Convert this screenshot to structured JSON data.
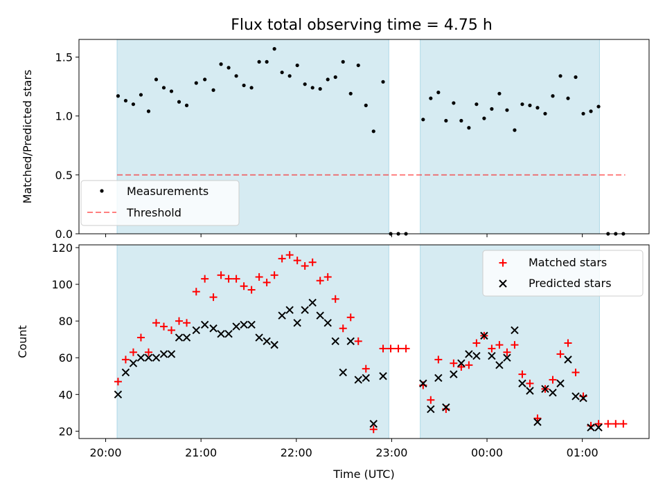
{
  "chart_data": {
    "type": "scatter",
    "title": "Flux total observing time = 4.75 h",
    "xlabel": "Time (UTC)",
    "x_tick_labels": [
      "20:00",
      "21:00",
      "22:00",
      "23:00",
      "00:00",
      "01:00"
    ],
    "x_tick_hours": [
      20,
      21,
      22,
      23,
      24,
      25
    ],
    "xlim_hours": [
      19.72,
      25.7
    ],
    "observing_windows_hours": [
      [
        20.12,
        22.97
      ],
      [
        23.3,
        25.18
      ]
    ],
    "window_color": "#add8e6",
    "top_panel": {
      "ylabel": "Matched/Predicted stars",
      "ylim": [
        0,
        1.65
      ],
      "y_ticks": [
        "0.0",
        "0.5",
        "1.0",
        "1.5"
      ],
      "y_tick_values": [
        0,
        0.5,
        1.0,
        1.5
      ],
      "legend": {
        "placement": "lower-left",
        "measurements_label": "Measurements",
        "threshold_label": "Threshold"
      },
      "threshold": {
        "value": 0.5,
        "x_range_hours": [
          20.12,
          25.45
        ],
        "color": "#ff0000"
      },
      "measurements_color": "#000000",
      "measurements": [
        [
          20.13,
          1.17
        ],
        [
          20.21,
          1.13
        ],
        [
          20.29,
          1.1
        ],
        [
          20.37,
          1.18
        ],
        [
          20.45,
          1.04
        ],
        [
          20.53,
          1.31
        ],
        [
          20.61,
          1.24
        ],
        [
          20.69,
          1.21
        ],
        [
          20.77,
          1.12
        ],
        [
          20.85,
          1.09
        ],
        [
          20.95,
          1.28
        ],
        [
          21.04,
          1.31
        ],
        [
          21.13,
          1.22
        ],
        [
          21.21,
          1.44
        ],
        [
          21.29,
          1.41
        ],
        [
          21.37,
          1.34
        ],
        [
          21.45,
          1.26
        ],
        [
          21.53,
          1.24
        ],
        [
          21.61,
          1.46
        ],
        [
          21.69,
          1.46
        ],
        [
          21.77,
          1.57
        ],
        [
          21.85,
          1.37
        ],
        [
          21.93,
          1.34
        ],
        [
          22.01,
          1.43
        ],
        [
          22.09,
          1.27
        ],
        [
          22.17,
          1.24
        ],
        [
          22.25,
          1.23
        ],
        [
          22.33,
          1.31
        ],
        [
          22.41,
          1.33
        ],
        [
          22.49,
          1.46
        ],
        [
          22.57,
          1.19
        ],
        [
          22.65,
          1.43
        ],
        [
          22.73,
          1.09
        ],
        [
          22.81,
          0.87
        ],
        [
          22.91,
          1.29
        ],
        [
          22.99,
          0.0
        ],
        [
          23.07,
          0.0
        ],
        [
          23.15,
          0.0
        ],
        [
          23.33,
          0.97
        ],
        [
          23.41,
          1.15
        ],
        [
          23.49,
          1.2
        ],
        [
          23.57,
          0.96
        ],
        [
          23.65,
          1.11
        ],
        [
          23.73,
          0.96
        ],
        [
          23.81,
          0.9
        ],
        [
          23.89,
          1.1
        ],
        [
          23.97,
          0.98
        ],
        [
          24.05,
          1.06
        ],
        [
          24.13,
          1.19
        ],
        [
          24.21,
          1.05
        ],
        [
          24.29,
          0.88
        ],
        [
          24.37,
          1.1
        ],
        [
          24.45,
          1.09
        ],
        [
          24.53,
          1.07
        ],
        [
          24.61,
          1.02
        ],
        [
          24.69,
          1.17
        ],
        [
          24.77,
          1.34
        ],
        [
          24.85,
          1.15
        ],
        [
          24.93,
          1.33
        ],
        [
          25.01,
          1.02
        ],
        [
          25.09,
          1.04
        ],
        [
          25.17,
          1.08
        ],
        [
          25.27,
          0.0
        ],
        [
          25.35,
          0.0
        ],
        [
          25.43,
          0.0
        ]
      ]
    },
    "bottom_panel": {
      "ylabel": "Count",
      "ylim": [
        16,
        121.5
      ],
      "y_ticks": [
        "20",
        "40",
        "60",
        "80",
        "100",
        "120"
      ],
      "y_tick_values": [
        20,
        40,
        60,
        80,
        100,
        120
      ],
      "legend": {
        "placement": "upper-right"
      },
      "series": [
        {
          "name": "Matched stars",
          "marker": "plus",
          "color": "#ff0000",
          "points": [
            [
              20.13,
              47
            ],
            [
              20.21,
              59
            ],
            [
              20.29,
              63
            ],
            [
              20.37,
              71
            ],
            [
              20.45,
              63
            ],
            [
              20.53,
              79
            ],
            [
              20.61,
              77
            ],
            [
              20.69,
              75
            ],
            [
              20.77,
              80
            ],
            [
              20.85,
              79
            ],
            [
              20.95,
              96
            ],
            [
              21.04,
              103
            ],
            [
              21.13,
              93
            ],
            [
              21.21,
              105
            ],
            [
              21.29,
              103
            ],
            [
              21.37,
              103
            ],
            [
              21.45,
              99
            ],
            [
              21.53,
              97
            ],
            [
              21.61,
              104
            ],
            [
              21.69,
              101
            ],
            [
              21.77,
              105
            ],
            [
              21.85,
              114
            ],
            [
              21.93,
              116
            ],
            [
              22.01,
              113
            ],
            [
              22.09,
              110
            ],
            [
              22.17,
              112
            ],
            [
              22.25,
              102
            ],
            [
              22.33,
              104
            ],
            [
              22.41,
              92
            ],
            [
              22.49,
              76
            ],
            [
              22.57,
              82
            ],
            [
              22.65,
              69
            ],
            [
              22.73,
              54
            ],
            [
              22.81,
              21
            ],
            [
              22.91,
              65
            ],
            [
              22.99,
              65
            ],
            [
              23.07,
              65
            ],
            [
              23.15,
              65
            ],
            [
              23.33,
              45
            ],
            [
              23.41,
              37
            ],
            [
              23.49,
              59
            ],
            [
              23.57,
              32
            ],
            [
              23.65,
              57
            ],
            [
              23.73,
              55
            ],
            [
              23.81,
              56
            ],
            [
              23.89,
              68
            ],
            [
              23.97,
              72
            ],
            [
              24.05,
              65
            ],
            [
              24.13,
              67
            ],
            [
              24.21,
              63
            ],
            [
              24.29,
              67
            ],
            [
              24.37,
              51
            ],
            [
              24.45,
              46
            ],
            [
              24.53,
              27
            ],
            [
              24.61,
              43
            ],
            [
              24.69,
              48
            ],
            [
              24.77,
              62
            ],
            [
              24.85,
              68
            ],
            [
              24.93,
              52
            ],
            [
              25.01,
              39
            ],
            [
              25.09,
              23
            ],
            [
              25.17,
              24
            ],
            [
              25.27,
              24
            ],
            [
              25.35,
              24
            ],
            [
              25.43,
              24
            ]
          ]
        },
        {
          "name": "Predicted stars",
          "marker": "x",
          "color": "#000000",
          "points": [
            [
              20.13,
              40
            ],
            [
              20.21,
              52
            ],
            [
              20.29,
              57
            ],
            [
              20.37,
              60
            ],
            [
              20.45,
              60
            ],
            [
              20.53,
              60
            ],
            [
              20.61,
              62
            ],
            [
              20.69,
              62
            ],
            [
              20.77,
              71
            ],
            [
              20.85,
              71
            ],
            [
              20.95,
              75
            ],
            [
              21.04,
              78
            ],
            [
              21.13,
              76
            ],
            [
              21.21,
              73
            ],
            [
              21.29,
              73
            ],
            [
              21.37,
              77
            ],
            [
              21.45,
              78
            ],
            [
              21.53,
              78
            ],
            [
              21.61,
              71
            ],
            [
              21.69,
              69
            ],
            [
              21.77,
              67
            ],
            [
              21.85,
              83
            ],
            [
              21.93,
              86
            ],
            [
              22.01,
              79
            ],
            [
              22.09,
              86
            ],
            [
              22.17,
              90
            ],
            [
              22.25,
              83
            ],
            [
              22.33,
              79
            ],
            [
              22.41,
              69
            ],
            [
              22.49,
              52
            ],
            [
              22.57,
              69
            ],
            [
              22.65,
              48
            ],
            [
              22.73,
              49
            ],
            [
              22.81,
              24
            ],
            [
              22.91,
              50
            ],
            [
              23.33,
              46
            ],
            [
              23.41,
              32
            ],
            [
              23.49,
              49
            ],
            [
              23.57,
              33
            ],
            [
              23.65,
              51
            ],
            [
              23.73,
              57
            ],
            [
              23.81,
              62
            ],
            [
              23.89,
              61
            ],
            [
              23.97,
              72
            ],
            [
              24.05,
              61
            ],
            [
              24.13,
              56
            ],
            [
              24.21,
              60
            ],
            [
              24.29,
              75
            ],
            [
              24.37,
              46
            ],
            [
              24.45,
              42
            ],
            [
              24.53,
              25
            ],
            [
              24.61,
              43
            ],
            [
              24.69,
              41
            ],
            [
              24.77,
              46
            ],
            [
              24.85,
              59
            ],
            [
              24.93,
              39
            ],
            [
              25.01,
              38
            ],
            [
              25.09,
              22
            ],
            [
              25.17,
              22
            ]
          ]
        }
      ]
    }
  }
}
